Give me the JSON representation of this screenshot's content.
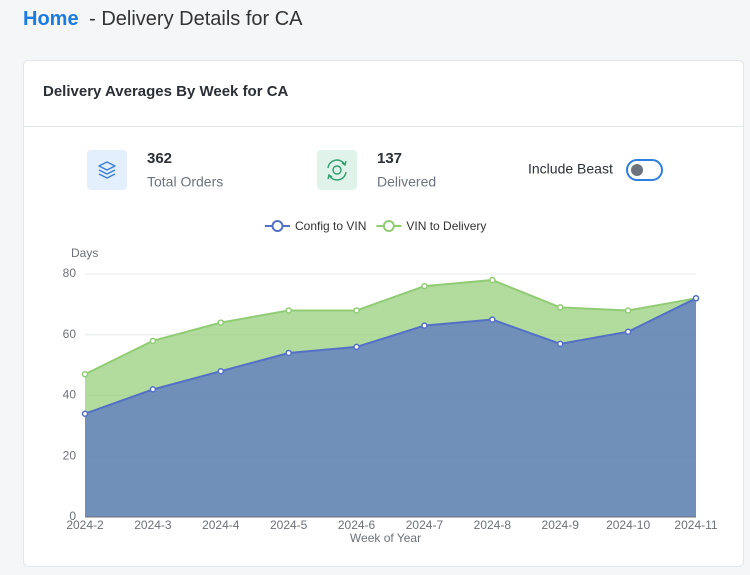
{
  "header": {
    "home": "Home",
    "title": "- Delivery Details for CA"
  },
  "card": {
    "title": "Delivery Averages By Week for CA",
    "stats": [
      {
        "value": "362",
        "label": "Total Orders"
      },
      {
        "value": "137",
        "label": "Delivered"
      }
    ],
    "toggle_label": "Include Beast"
  },
  "chart_data": {
    "type": "area",
    "y_label": "Days",
    "x_label": "Week of Year",
    "categories": [
      "2024-2",
      "2024-3",
      "2024-4",
      "2024-5",
      "2024-6",
      "2024-7",
      "2024-8",
      "2024-9",
      "2024-10",
      "2024-11"
    ],
    "series": [
      {
        "name": "Config to VIN",
        "color": "#5470c6",
        "values": [
          34,
          42,
          48,
          54,
          56,
          63,
          65,
          57,
          61,
          72
        ]
      },
      {
        "name": "VIN to Delivery",
        "color": "#91cc75",
        "values": [
          47,
          58,
          64,
          68,
          68,
          76,
          78,
          69,
          68,
          72
        ]
      }
    ],
    "ylim": [
      0,
      80
    ],
    "yticks": [
      0,
      20,
      40,
      60,
      80
    ],
    "grid": true
  }
}
